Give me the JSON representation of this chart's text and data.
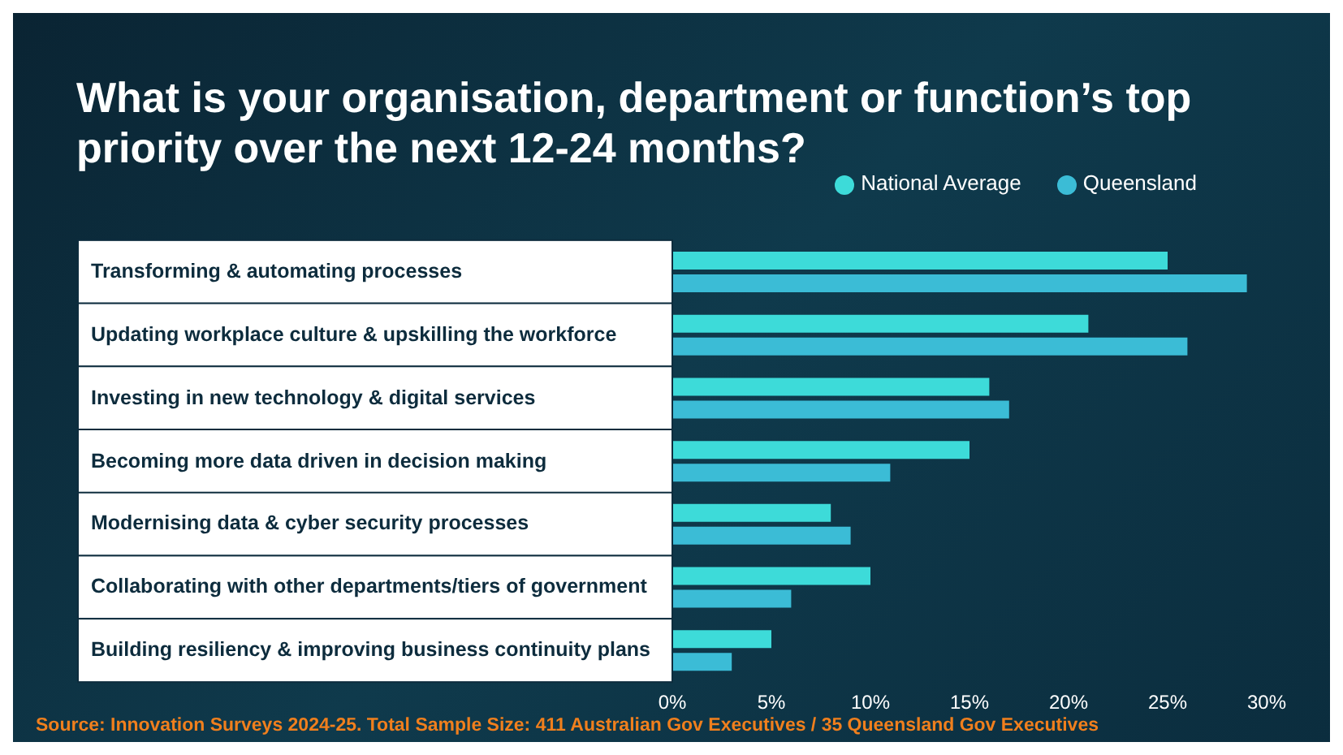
{
  "chart_data": {
    "type": "bar",
    "orientation": "horizontal",
    "title": "What is your organisation, department or function’s top priority over the next 12-24 months?",
    "categories": [
      "Transforming & automating processes",
      "Updating workplace culture & upskilling the workforce",
      "Investing in new technology & digital services",
      "Becoming more data driven in decision making",
      "Modernising data & cyber security processes",
      "Collaborating with other departments/tiers of government",
      "Building resiliency & improving business continuity plans"
    ],
    "series": [
      {
        "name": "National Average",
        "color": "#3ddbd9",
        "values": [
          25,
          21,
          16,
          15,
          8,
          10,
          5
        ]
      },
      {
        "name": "Queensland",
        "color": "#3bbcd6",
        "values": [
          29,
          26,
          17,
          11,
          9,
          6,
          3
        ]
      }
    ],
    "xlim": [
      0,
      30
    ],
    "xticks": [
      {
        "value": 0,
        "label": "0%"
      },
      {
        "value": 5,
        "label": "5%"
      },
      {
        "value": 10,
        "label": "10%"
      },
      {
        "value": 15,
        "label": "15%"
      },
      {
        "value": 20,
        "label": "20%"
      },
      {
        "value": 25,
        "label": "25%"
      },
      {
        "value": 30,
        "label": "30%"
      }
    ],
    "legend": "top right",
    "grid": false,
    "annotations": [
      "Source: Innovation Surveys 2024-25. Total Sample Size: 411 Australian Gov Executives / 35 Queensland Gov Executives"
    ]
  }
}
